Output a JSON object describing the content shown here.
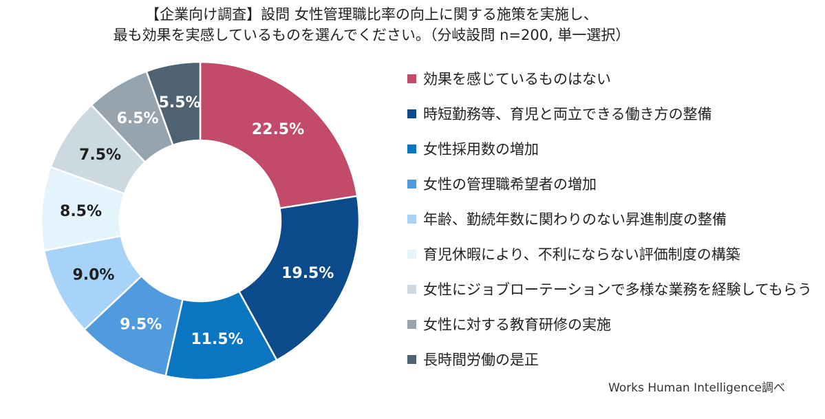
{
  "title": {
    "line1": "【企業向け調査】設問 女性管理職比率の向上に関する施策を実施し、",
    "line2": "最も効果を実感しているものを選んでください。（分岐設問 n=200, 単一選択）"
  },
  "chart_data": {
    "type": "pie",
    "donut": true,
    "legend_position": "right",
    "categories": [
      "効果を感じているものはない",
      "時短勤務等、育児と両立できる働き方の整備",
      "女性採用数の増加",
      "女性の管理職希望者の増加",
      "年齢、勤続年数に関わりのない昇進制度の整備",
      "育児休暇により、不利にならない評価制度の構築",
      "女性にジョブローテーションで多様な業務を経験してもらう",
      "女性に対する教育研修の実施",
      "長時間労働の是正"
    ],
    "values": [
      22.5,
      19.5,
      11.5,
      9.5,
      9.0,
      8.5,
      7.5,
      6.5,
      5.5
    ],
    "labels": [
      "22.5%",
      "19.5%",
      "11.5%",
      "9.5%",
      "9.0%",
      "8.5%",
      "7.5%",
      "6.5%",
      "5.5%"
    ],
    "colors": [
      "#C24B6A",
      "#0B4A8B",
      "#0A76C2",
      "#4F9BDE",
      "#A6D3F7",
      "#E4F3FC",
      "#CDD9E1",
      "#97A4AE",
      "#4E6271"
    ],
    "label_colors": [
      "#ffffff",
      "#ffffff",
      "#ffffff",
      "#ffffff",
      "#1f1f1f",
      "#1f1f1f",
      "#1f1f1f",
      "#ffffff",
      "#ffffff"
    ]
  },
  "source": "Works Human Intelligence調べ"
}
